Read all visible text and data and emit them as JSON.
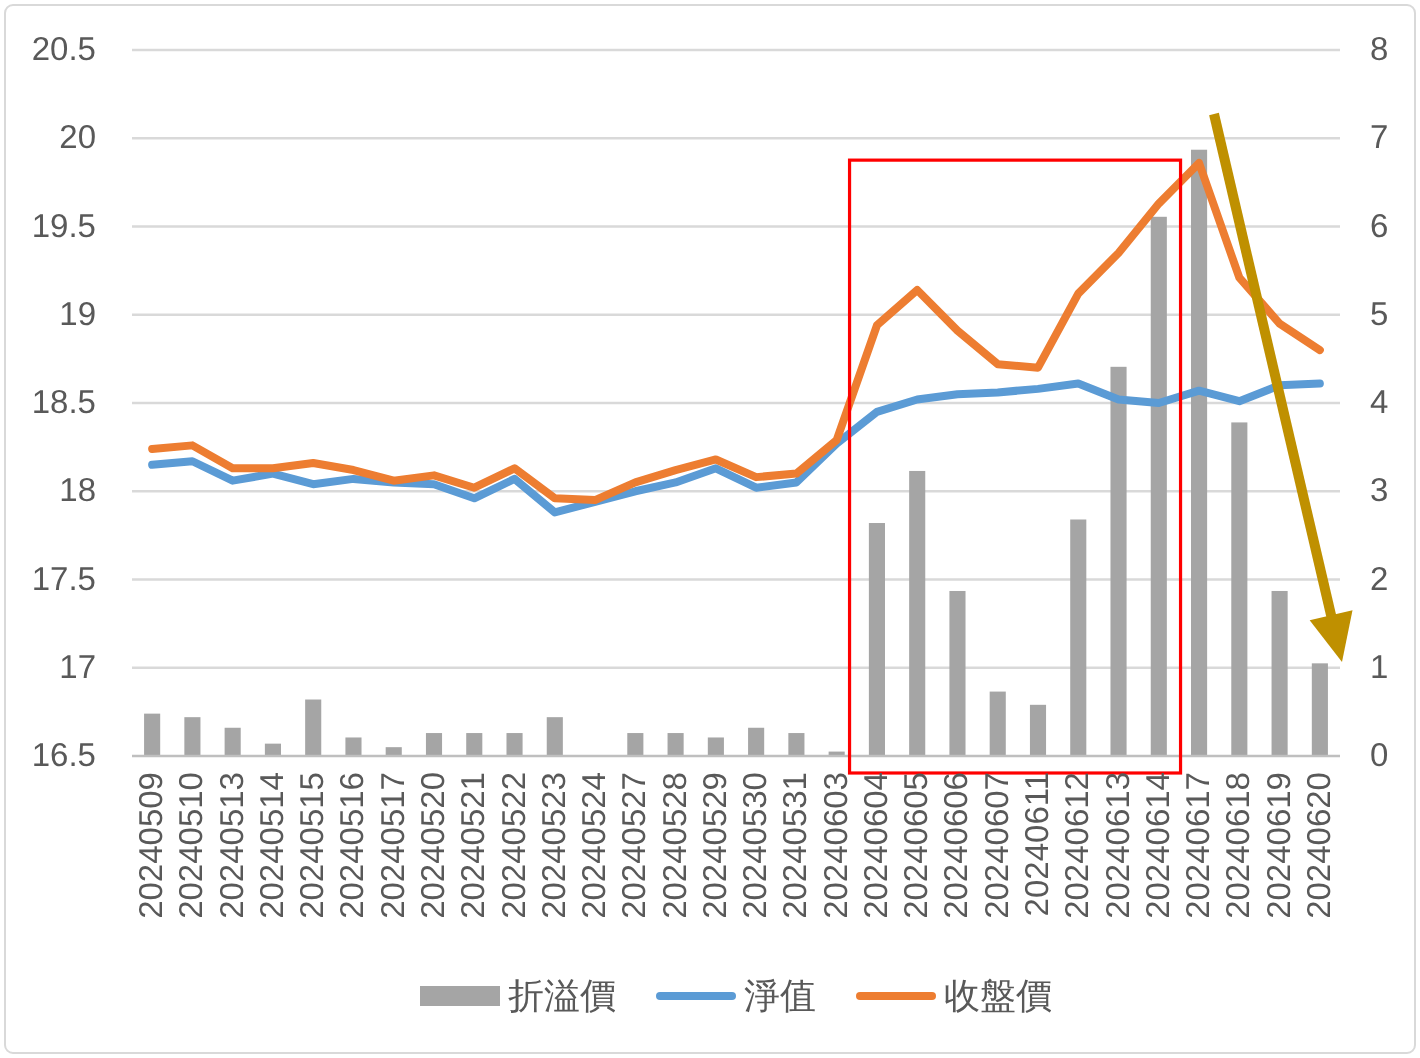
{
  "chart_data": {
    "type": "bar",
    "categories": [
      "20240509",
      "20240510",
      "20240513",
      "20240514",
      "20240515",
      "20240516",
      "20240517",
      "20240520",
      "20240521",
      "20240522",
      "20240523",
      "20240524",
      "20240527",
      "20240528",
      "20240529",
      "20240530",
      "20240531",
      "20240603",
      "20240604",
      "20240605",
      "20240606",
      "20240607",
      "20240611",
      "20240612",
      "20240613",
      "20240614",
      "20240617",
      "20240618",
      "20240619",
      "20240620"
    ],
    "series": [
      {
        "name": "折溢價",
        "axis": "y2",
        "color": "#a5a5a5",
        "values": [
          0.48,
          0.44,
          0.32,
          0.14,
          0.64,
          0.21,
          0.1,
          0.26,
          0.26,
          0.26,
          0.44,
          null,
          0.26,
          0.26,
          0.21,
          0.32,
          0.26,
          0.05,
          2.64,
          3.23,
          1.87,
          0.73,
          0.58,
          2.68,
          4.41,
          6.11,
          6.87,
          3.78,
          1.87,
          1.05
        ]
      },
      {
        "name": "淨值",
        "type": "line",
        "color": "#5b9bd5",
        "values": [
          18.15,
          18.17,
          18.06,
          18.1,
          18.04,
          18.07,
          18.05,
          18.04,
          17.96,
          18.07,
          17.88,
          17.94,
          18.0,
          18.05,
          18.13,
          18.02,
          18.05,
          18.27,
          18.45,
          18.52,
          18.55,
          18.56,
          18.58,
          18.61,
          18.52,
          18.5,
          18.57,
          18.51,
          18.6,
          18.61
        ]
      },
      {
        "name": "收盤價",
        "type": "line",
        "color": "#ed7d31",
        "values": [
          18.24,
          18.26,
          18.13,
          18.13,
          18.16,
          18.12,
          18.06,
          18.09,
          18.02,
          18.13,
          17.96,
          17.95,
          18.05,
          18.12,
          18.18,
          18.08,
          18.1,
          18.29,
          18.94,
          19.14,
          18.91,
          18.72,
          18.7,
          19.12,
          19.35,
          19.63,
          19.86,
          19.21,
          18.95,
          18.8
        ]
      }
    ],
    "ylim": [
      16.5,
      20.5
    ],
    "yticks": [
      16.5,
      17,
      17.5,
      18,
      18.5,
      19,
      19.5,
      20,
      20.5
    ],
    "y2lim": [
      0,
      8
    ],
    "y2ticks": [
      0,
      1,
      2,
      3,
      4,
      5,
      6,
      7,
      8
    ],
    "grid": "y",
    "legend": "bottom"
  }
}
